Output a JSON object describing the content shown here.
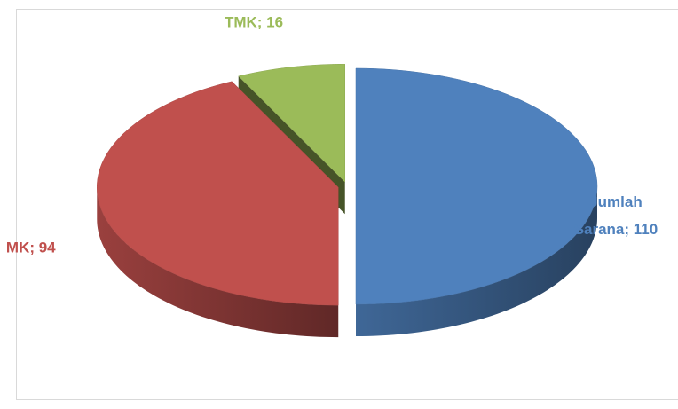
{
  "chart_data": {
    "type": "pie",
    "values": [
      110,
      94,
      16
    ],
    "value_labels": [
      "Jumlah Sarana; 110",
      "MK; 94",
      "TMK; 16"
    ],
    "colors": [
      "#4f81bd",
      "#c0504d",
      "#9bbb59"
    ],
    "start_angle": 0,
    "direction": "clockwise",
    "exploded": true,
    "three_d": true
  }
}
